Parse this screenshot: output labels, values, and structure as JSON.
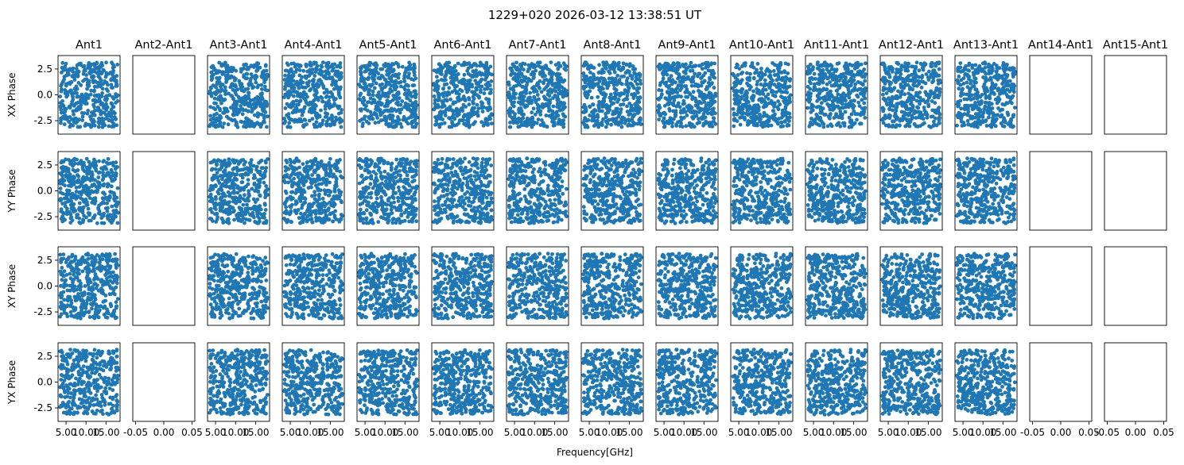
{
  "figure": {
    "title": "1229+020 2026-03-12 13:38:51 UT",
    "xlabel": "Frequency[GHz]"
  },
  "colors": {
    "marker": "#1f77b4",
    "axes": "#000000",
    "background": "#ffffff"
  },
  "chart_data": {
    "type": "scatter",
    "columns": [
      "Ant1",
      "Ant2-Ant1",
      "Ant3-Ant1",
      "Ant4-Ant1",
      "Ant5-Ant1",
      "Ant6-Ant1",
      "Ant7-Ant1",
      "Ant8-Ant1",
      "Ant9-Ant1",
      "Ant10-Ant1",
      "Ant11-Ant1",
      "Ant12-Ant1",
      "Ant13-Ant1",
      "Ant14-Ant1",
      "Ant15-Ant1"
    ],
    "rows": [
      "XX Phase",
      "YY Phase",
      "XY Phase",
      "YX Phase"
    ],
    "xlabel": "Frequency[GHz]",
    "xlim_data": [
      3.0,
      18.5
    ],
    "xlim_empty": [
      -0.055,
      0.055
    ],
    "ylim": [
      -3.8,
      3.8
    ],
    "x_tick_labels_data": [
      "5.00",
      "10.00",
      "15.00"
    ],
    "x_ticks_data": [
      5.0,
      10.0,
      15.0
    ],
    "x_tick_labels_empty": [
      "-0.05",
      "0.00",
      "0.05"
    ],
    "x_ticks_empty": [
      -0.05,
      0.0,
      0.05
    ],
    "y_tick_labels": [
      "2.5",
      "0.0",
      "-2.5"
    ],
    "y_ticks": [
      2.5,
      0.0,
      -2.5
    ],
    "empty_columns": [
      1,
      13,
      14
    ],
    "series_description": "Phase values scattered uniformly between -pi and pi across frequency for each baseline/polarization",
    "points_per_panel": 400,
    "phase_range": [
      -3.14,
      3.14
    ],
    "freq_range": [
      3.5,
      18.0
    ],
    "grid": false,
    "legend": "none"
  }
}
